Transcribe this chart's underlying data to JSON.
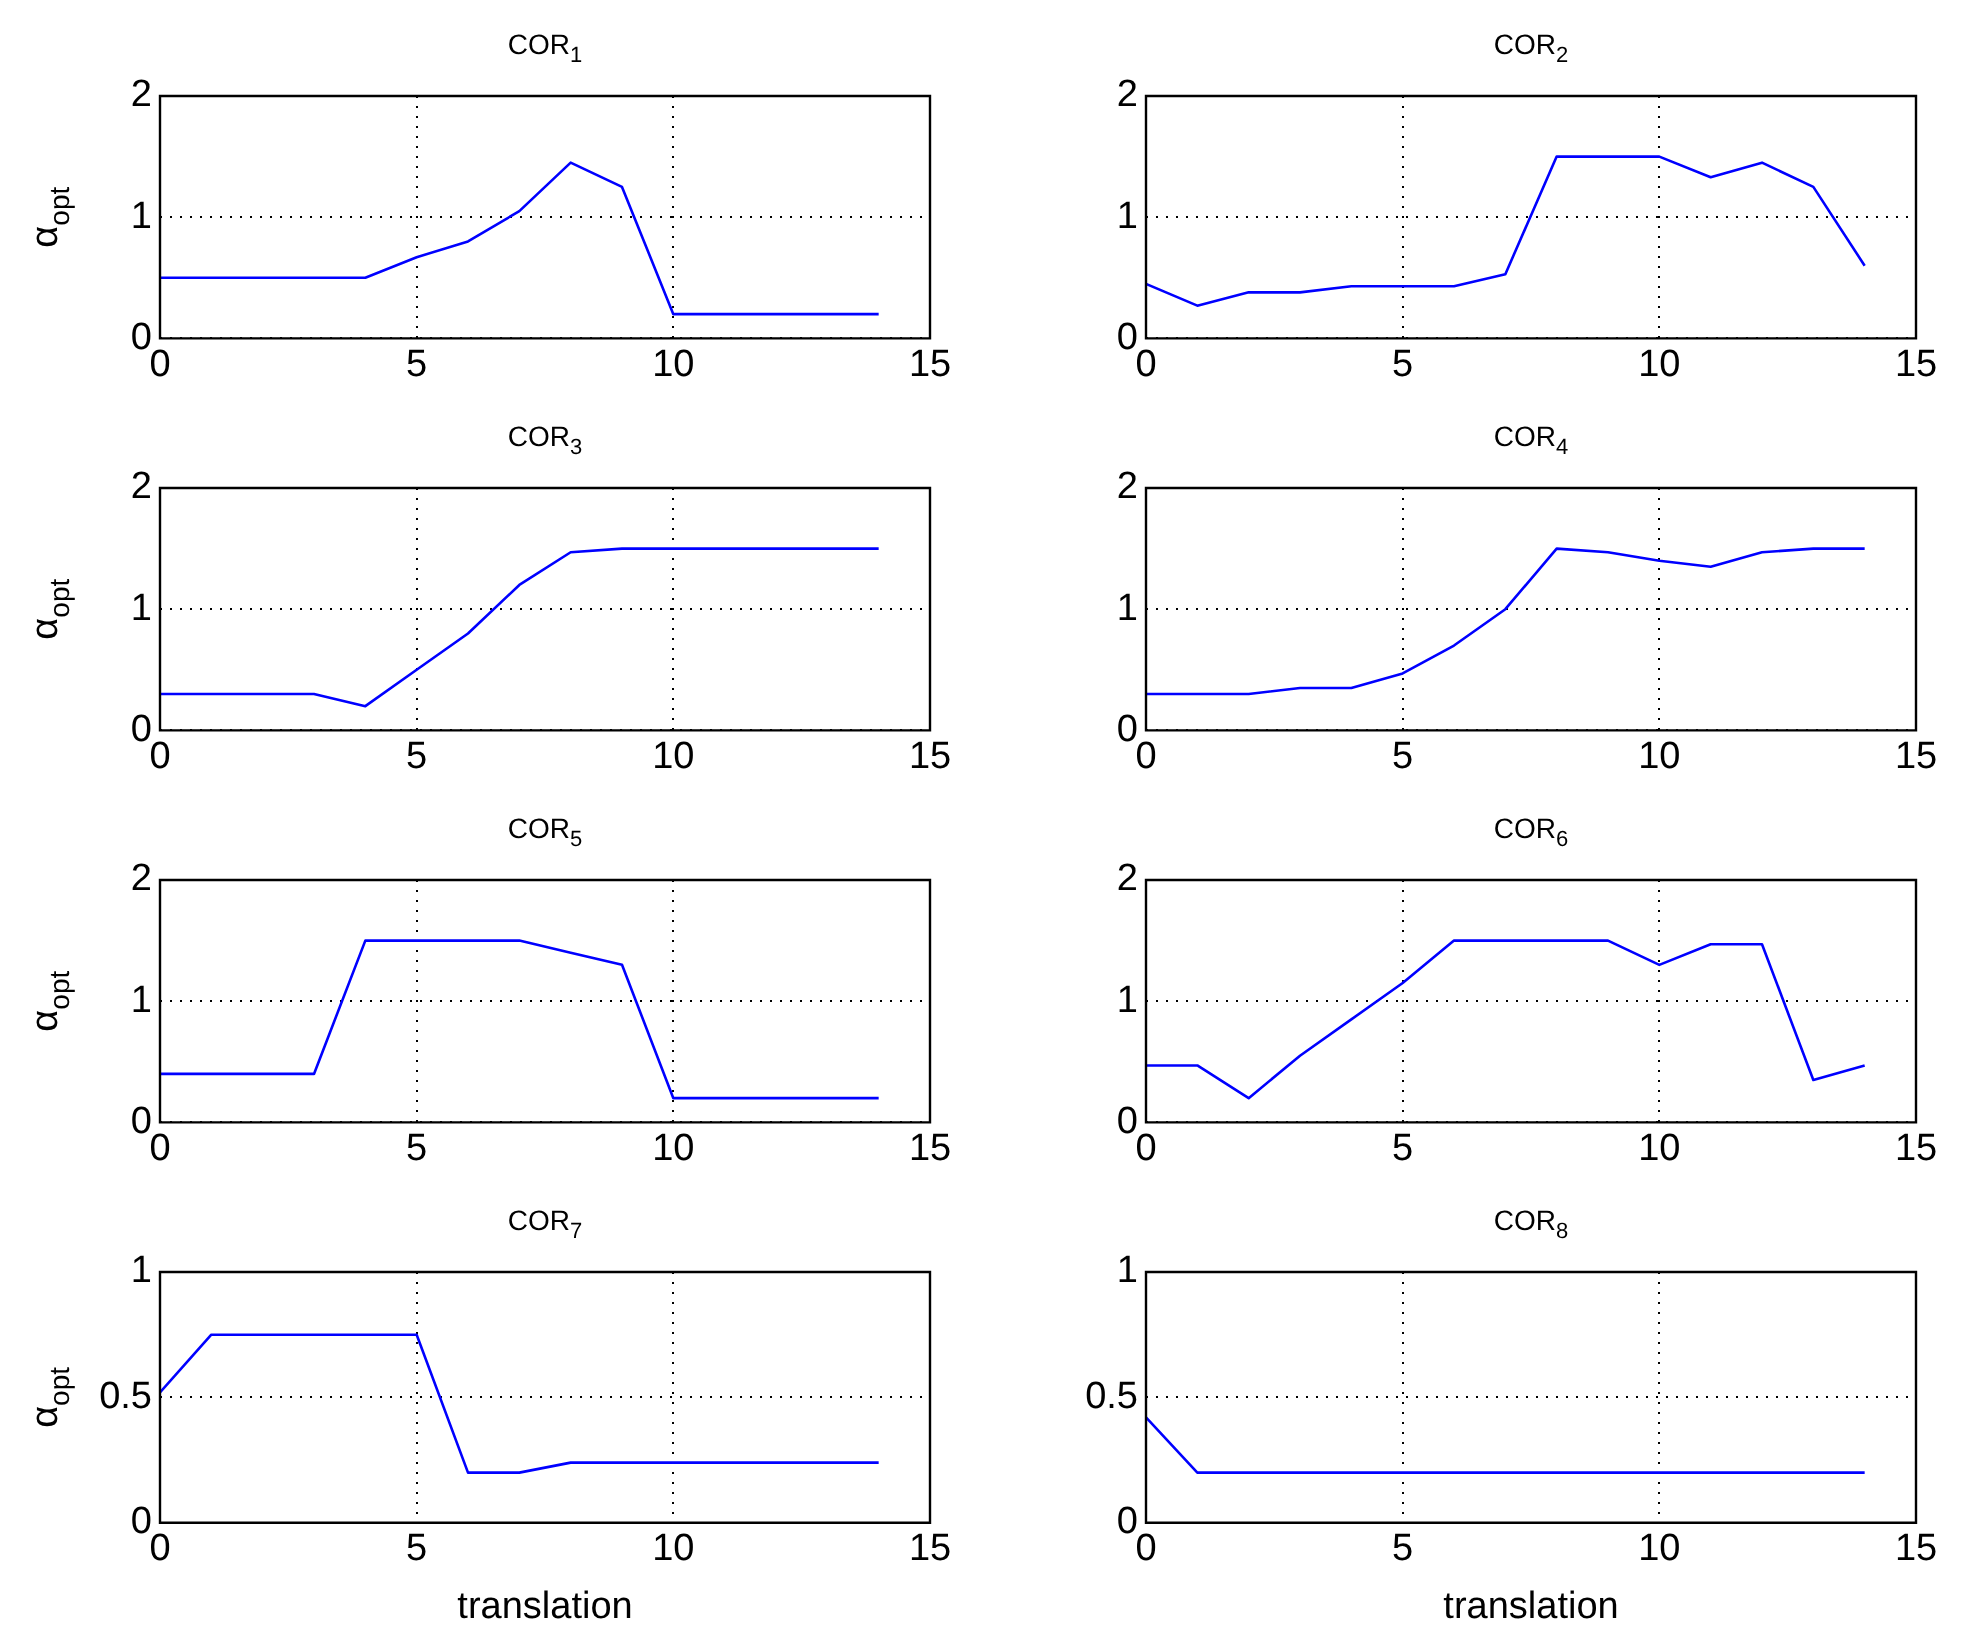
{
  "chart_data": [
    {
      "type": "line",
      "title": "COR$_{1}$",
      "ylabel": "α$_{opt}$",
      "x": [
        0,
        1,
        2,
        3,
        4,
        5,
        6,
        7,
        8,
        9,
        10,
        11,
        12,
        13,
        14
      ],
      "xlim": [
        0,
        15
      ],
      "xticks": [
        0,
        5,
        10,
        15
      ],
      "ylim": [
        0,
        2
      ],
      "yticks": [
        0,
        1,
        2
      ],
      "grid": true,
      "series": [
        {
          "color": "#0000ff",
          "values": [
            0.5,
            0.5,
            0.5,
            0.5,
            0.5,
            0.67,
            0.8,
            1.05,
            1.45,
            1.25,
            0.2,
            0.2,
            0.2,
            0.2,
            0.2
          ]
        }
      ]
    },
    {
      "type": "line",
      "title": "COR$_{2}$",
      "x": [
        0,
        1,
        2,
        3,
        4,
        5,
        6,
        7,
        8,
        9,
        10,
        11,
        12,
        13,
        14
      ],
      "xlim": [
        0,
        15
      ],
      "xticks": [
        0,
        5,
        10,
        15
      ],
      "ylim": [
        0,
        2
      ],
      "yticks": [
        0,
        1,
        2
      ],
      "grid": true,
      "series": [
        {
          "color": "#0000ff",
          "values": [
            0.45,
            0.27,
            0.38,
            0.38,
            0.43,
            0.43,
            0.43,
            0.53,
            1.5,
            1.5,
            1.5,
            1.33,
            1.45,
            1.25,
            0.6
          ]
        }
      ]
    },
    {
      "type": "line",
      "title": "COR$_{3}$",
      "ylabel": "α$_{opt}$",
      "x": [
        0,
        1,
        2,
        3,
        4,
        5,
        6,
        7,
        8,
        9,
        10,
        11,
        12,
        13,
        14
      ],
      "xlim": [
        0,
        15
      ],
      "xticks": [
        0,
        5,
        10,
        15
      ],
      "ylim": [
        0,
        2
      ],
      "yticks": [
        0,
        1,
        2
      ],
      "grid": true,
      "series": [
        {
          "color": "#0000ff",
          "values": [
            0.3,
            0.3,
            0.3,
            0.3,
            0.2,
            0.5,
            0.8,
            1.2,
            1.47,
            1.5,
            1.5,
            1.5,
            1.5,
            1.5,
            1.5
          ]
        }
      ]
    },
    {
      "type": "line",
      "title": "COR$_{4}$",
      "x": [
        0,
        1,
        2,
        3,
        4,
        5,
        6,
        7,
        8,
        9,
        10,
        11,
        12,
        13,
        14
      ],
      "xlim": [
        0,
        15
      ],
      "xticks": [
        0,
        5,
        10,
        15
      ],
      "ylim": [
        0,
        2
      ],
      "yticks": [
        0,
        1,
        2
      ],
      "grid": true,
      "series": [
        {
          "color": "#0000ff",
          "values": [
            0.3,
            0.3,
            0.3,
            0.35,
            0.35,
            0.47,
            0.7,
            1.0,
            1.5,
            1.47,
            1.4,
            1.35,
            1.47,
            1.5,
            1.5
          ]
        }
      ]
    },
    {
      "type": "line",
      "title": "COR$_{5}$",
      "ylabel": "α$_{opt}$",
      "x": [
        0,
        1,
        2,
        3,
        4,
        5,
        6,
        7,
        8,
        9,
        10,
        11,
        12,
        13,
        14
      ],
      "xlim": [
        0,
        15
      ],
      "xticks": [
        0,
        5,
        10,
        15
      ],
      "ylim": [
        0,
        2
      ],
      "yticks": [
        0,
        1,
        2
      ],
      "grid": true,
      "series": [
        {
          "color": "#0000ff",
          "values": [
            0.4,
            0.4,
            0.4,
            0.4,
            1.5,
            1.5,
            1.5,
            1.5,
            1.4,
            1.3,
            0.2,
            0.2,
            0.2,
            0.2,
            0.2
          ]
        }
      ]
    },
    {
      "type": "line",
      "title": "COR$_{6}$",
      "x": [
        0,
        1,
        2,
        3,
        4,
        5,
        6,
        7,
        8,
        9,
        10,
        11,
        12,
        13,
        14
      ],
      "xlim": [
        0,
        15
      ],
      "xticks": [
        0,
        5,
        10,
        15
      ],
      "ylim": [
        0,
        2
      ],
      "yticks": [
        0,
        1,
        2
      ],
      "grid": true,
      "series": [
        {
          "color": "#0000ff",
          "values": [
            0.47,
            0.47,
            0.2,
            0.55,
            0.85,
            1.15,
            1.5,
            1.5,
            1.5,
            1.5,
            1.3,
            1.47,
            1.47,
            0.35,
            0.47
          ]
        }
      ]
    },
    {
      "type": "line",
      "title": "COR$_{7}$",
      "ylabel": "α$_{opt}$",
      "xlabel": "translation",
      "x": [
        0,
        1,
        2,
        3,
        4,
        5,
        6,
        7,
        8,
        9,
        10,
        11,
        12,
        13,
        14
      ],
      "xlim": [
        0,
        15
      ],
      "xticks": [
        0,
        5,
        10,
        15
      ],
      "ylim": [
        0,
        1
      ],
      "yticks": [
        0,
        0.5,
        1
      ],
      "grid": true,
      "series": [
        {
          "color": "#0000ff",
          "values": [
            0.52,
            0.75,
            0.75,
            0.75,
            0.75,
            0.75,
            0.2,
            0.2,
            0.24,
            0.24,
            0.24,
            0.24,
            0.24,
            0.24,
            0.24
          ]
        }
      ]
    },
    {
      "type": "line",
      "title": "COR$_{8}$",
      "xlabel": "translation",
      "x": [
        0,
        1,
        2,
        3,
        4,
        5,
        6,
        7,
        8,
        9,
        10,
        11,
        12,
        13,
        14
      ],
      "xlim": [
        0,
        15
      ],
      "xticks": [
        0,
        5,
        10,
        15
      ],
      "ylim": [
        0,
        1
      ],
      "yticks": [
        0,
        0.5,
        1
      ],
      "grid": true,
      "series": [
        {
          "color": "#0000ff",
          "values": [
            0.42,
            0.2,
            0.2,
            0.2,
            0.2,
            0.2,
            0.2,
            0.2,
            0.2,
            0.2,
            0.2,
            0.2,
            0.2,
            0.2,
            0.2
          ]
        }
      ]
    }
  ]
}
